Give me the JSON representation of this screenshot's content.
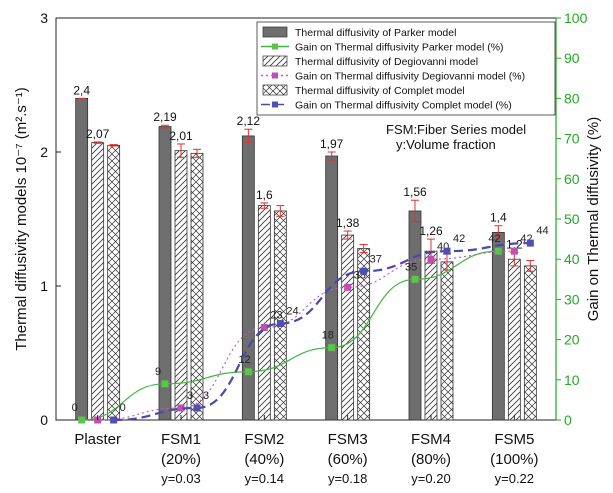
{
  "chart_data": {
    "type": "bar",
    "categories": [
      {
        "name": "Plaster",
        "line2": "",
        "line3": ""
      },
      {
        "name": "FSM1",
        "line2": "(20%)",
        "line3": "y=0.03"
      },
      {
        "name": "FSM2",
        "line2": "(40%)",
        "line3": "y=0.14"
      },
      {
        "name": "FSM3",
        "line2": "(60%)",
        "line3": "y=0.18"
      },
      {
        "name": "FSM4",
        "line2": "(80%)",
        "line3": "y=0.20"
      },
      {
        "name": "FSM5",
        "line2": "(100%)",
        "line3": "y=0.22"
      }
    ],
    "ylabel": "Thermal diffusivity models 10⁻⁷ (m².s⁻¹)",
    "y2label": "Gain on Thermal diffusivity (%)",
    "ylim": [
      0,
      3
    ],
    "y2lim": [
      0,
      100
    ],
    "yticks": [
      "0",
      "1",
      "2",
      "3"
    ],
    "y2ticks": [
      "0",
      "10",
      "20",
      "30",
      "40",
      "50",
      "60",
      "70",
      "80",
      "90",
      "100"
    ],
    "bar_series": [
      {
        "name": "Thermal diffusivity of Parker model",
        "pattern": "solid",
        "color": "#6e6e6e",
        "values": [
          2.4,
          2.19,
          2.12,
          1.97,
          1.56,
          1.4
        ],
        "labels": [
          "2,4",
          "2,19",
          "2,12",
          "1,97",
          "1,56",
          "1,4"
        ],
        "errors": [
          0,
          0.01,
          0.05,
          0.03,
          0.08,
          0.05
        ]
      },
      {
        "name": "Thermal diffusivity of Degiovanni model",
        "pattern": "hatch",
        "values": [
          2.07,
          2.01,
          1.6,
          1.38,
          1.26,
          1.2
        ],
        "labels": [
          "2,07",
          "2,01",
          "1,6",
          "1,38",
          "1,26",
          "1,2"
        ],
        "errors": [
          0.005,
          0.05,
          0.02,
          0.03,
          0.09,
          0.05
        ]
      },
      {
        "name": "Thermal diffusivity of  Complet model",
        "pattern": "cross",
        "values": [
          2.05,
          1.99,
          1.56,
          1.28,
          1.18,
          1.15
        ],
        "labels": [
          "",
          "",
          "",
          "",
          "",
          ""
        ],
        "errors": [
          0.005,
          0.03,
          0.04,
          0.03,
          0.06,
          0.04
        ]
      }
    ],
    "gain_series": [
      {
        "name": "Gain on Thermal diffusivity Parker model (%)",
        "color": "#3db83d",
        "marker": "#5cc44a",
        "dash": "",
        "values": [
          0,
          9,
          12,
          18,
          35,
          42
        ],
        "labels": [
          "0",
          "9",
          "12",
          "18",
          "35",
          "42"
        ]
      },
      {
        "name": "Gain on Thermal diffusivity Degiovanni model (%)",
        "color": "#c060c0",
        "marker": "#c050b0",
        "dash": "2,3",
        "values": [
          0,
          3,
          23,
          33,
          40,
          42
        ],
        "labels": [
          "",
          "3",
          "23",
          "33",
          "40",
          "42"
        ]
      },
      {
        "name": "Gain on Thermal diffusivity Complet model (%)",
        "color": "#4a4aa8",
        "marker": "#5050b0",
        "dash": "9,5",
        "values": [
          0,
          3,
          24,
          37,
          42,
          44
        ],
        "labels": [
          "0",
          "3",
          "24",
          "37",
          "42",
          "44"
        ]
      }
    ],
    "annotations": [
      "FSM:Fiber Series model",
      "y:Volume fraction"
    ],
    "legend_position": "top-right",
    "colors": {
      "left_axis": "#111111",
      "right_axis": "#22aa22",
      "error_bar": "#e03030"
    }
  }
}
